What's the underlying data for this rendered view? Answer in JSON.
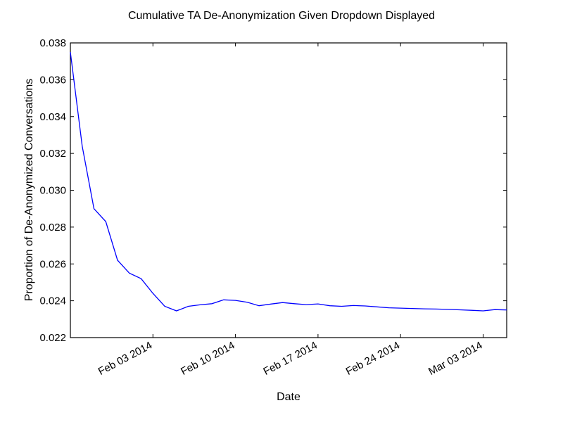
{
  "chart_data": {
    "type": "line",
    "title": "Cumulative TA De-Anonymization Given Dropdown Displayed",
    "xlabel": "Date",
    "ylabel": "Proportion of De-Anonymized Conversations",
    "ylim": [
      0.022,
      0.038
    ],
    "xlim": [
      "2014-01-27",
      "2014-03-05"
    ],
    "x_ticks": [
      {
        "date": "2014-02-03",
        "label": "Feb 03 2014"
      },
      {
        "date": "2014-02-10",
        "label": "Feb 10 2014"
      },
      {
        "date": "2014-02-17",
        "label": "Feb 17 2014"
      },
      {
        "date": "2014-02-24",
        "label": "Feb 24 2014"
      },
      {
        "date": "2014-03-03",
        "label": "Mar 03 2014"
      }
    ],
    "y_ticks": [
      "0.022",
      "0.024",
      "0.026",
      "0.028",
      "0.030",
      "0.032",
      "0.034",
      "0.036",
      "0.038"
    ],
    "y_tick_values": [
      0.022,
      0.024,
      0.026,
      0.028,
      0.03,
      0.032,
      0.034,
      0.036,
      0.038
    ],
    "grid": false,
    "series": [
      {
        "color": "#0000ff",
        "x": [
          "2014-01-27",
          "2014-01-28",
          "2014-01-29",
          "2014-01-30",
          "2014-01-31",
          "2014-02-01",
          "2014-02-02",
          "2014-02-03",
          "2014-02-04",
          "2014-02-05",
          "2014-02-06",
          "2014-02-07",
          "2014-02-08",
          "2014-02-09",
          "2014-02-10",
          "2014-02-11",
          "2014-02-12",
          "2014-02-13",
          "2014-02-14",
          "2014-02-15",
          "2014-02-16",
          "2014-02-17",
          "2014-02-18",
          "2014-02-19",
          "2014-02-20",
          "2014-02-21",
          "2014-02-22",
          "2014-02-23",
          "2014-02-24",
          "2014-02-25",
          "2014-02-26",
          "2014-02-27",
          "2014-02-28",
          "2014-03-01",
          "2014-03-02",
          "2014-03-03",
          "2014-03-04",
          "2014-03-05"
        ],
        "y": [
          0.0375,
          0.0324,
          0.029,
          0.0283,
          0.0262,
          0.0255,
          0.0252,
          0.0244,
          0.0237,
          0.02345,
          0.0237,
          0.02378,
          0.02384,
          0.02405,
          0.02402,
          0.02392,
          0.02373,
          0.02382,
          0.0239,
          0.02384,
          0.02379,
          0.02383,
          0.02373,
          0.0237,
          0.02374,
          0.02372,
          0.02367,
          0.02362,
          0.0236,
          0.02358,
          0.02356,
          0.02355,
          0.02353,
          0.02351,
          0.02348,
          0.02345,
          0.02352,
          0.0235
        ]
      }
    ]
  }
}
